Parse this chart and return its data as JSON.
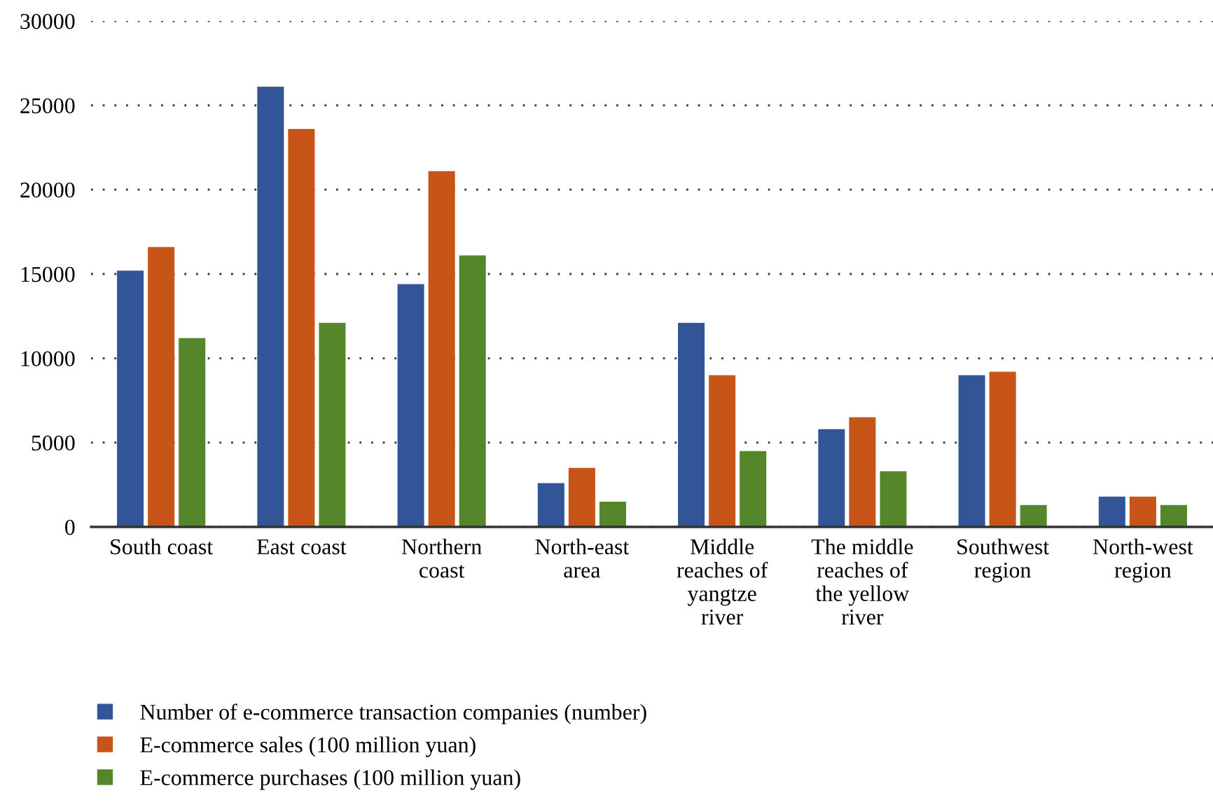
{
  "chart_data": {
    "type": "bar",
    "categories": [
      "South coast",
      "East coast",
      "Northern coast",
      "North-east area",
      "Middle reaches of yangtze river",
      "The middle reaches of the yellow river",
      "Southwest region",
      "North-west region"
    ],
    "series": [
      {
        "name": "Number of e-commerce transaction companies (number)",
        "color": "#325597",
        "values": [
          15200,
          26100,
          14400,
          2600,
          12100,
          5800,
          9000,
          1800
        ]
      },
      {
        "name": "E-commerce sales (100 million yuan)",
        "color": "#c75518",
        "values": [
          16600,
          23600,
          21100,
          3500,
          9000,
          6500,
          9200,
          1800
        ]
      },
      {
        "name": "E-commerce purchases (100 million yuan)",
        "color": "#56862a",
        "values": [
          11200,
          12100,
          16100,
          1500,
          4500,
          3300,
          1300,
          1300
        ]
      }
    ],
    "ylim": [
      0,
      30000
    ],
    "yticks": [
      0,
      5000,
      10000,
      15000,
      20000,
      25000,
      30000
    ],
    "grid": "y",
    "legend": "bottom left"
  }
}
